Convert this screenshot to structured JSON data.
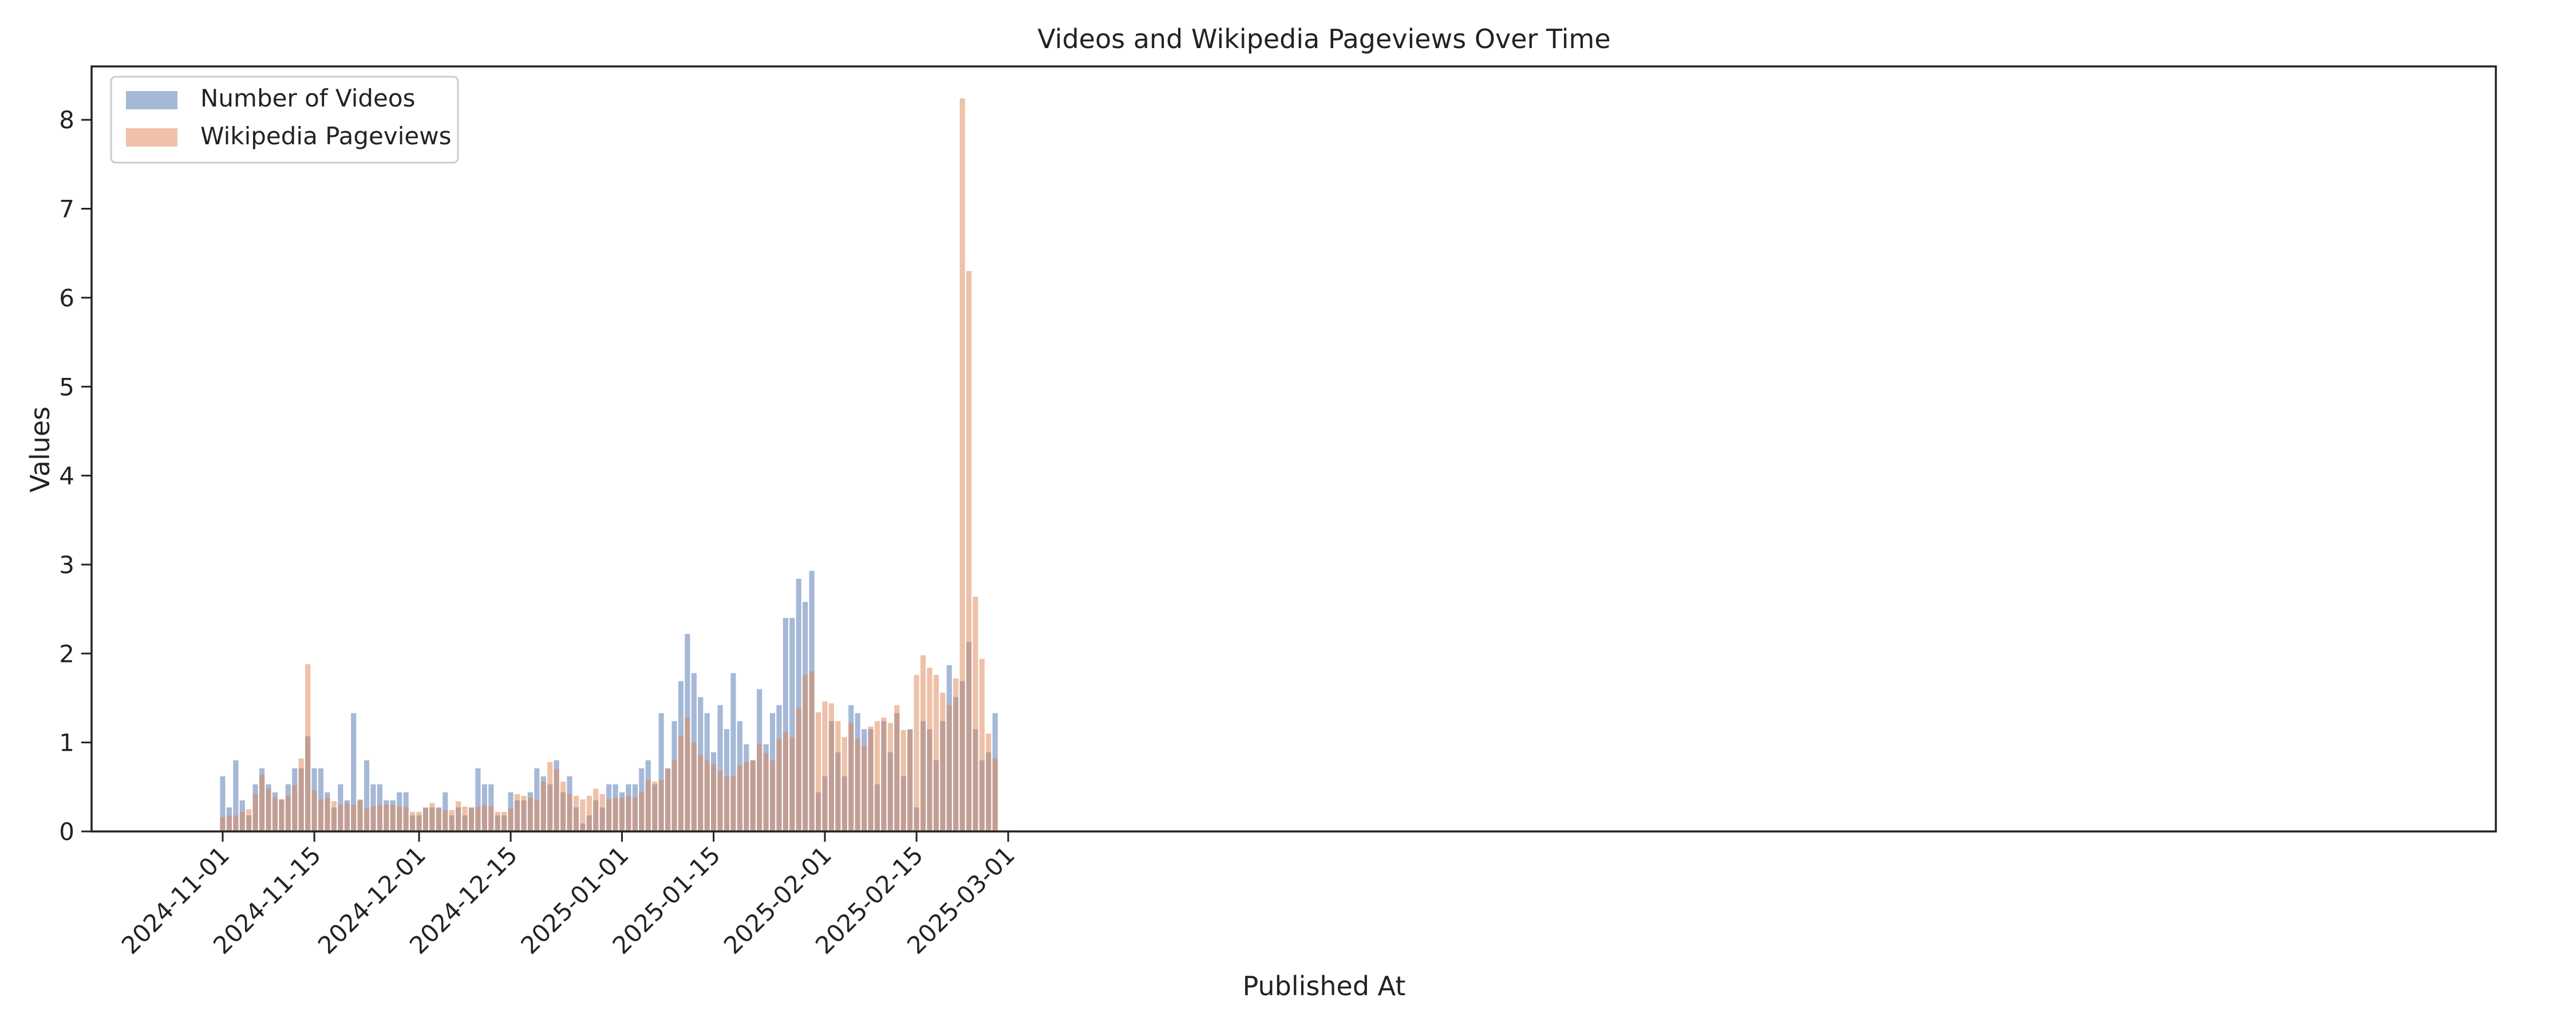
{
  "chart_data": {
    "type": "bar",
    "title": "Videos and Wikipedia Pageviews Over Time",
    "xlabel": "Published At",
    "ylabel": "Values",
    "x_start": "2024-11-01",
    "ylim": [
      0,
      8.6
    ],
    "yticks": [
      0,
      1,
      2,
      3,
      4,
      5,
      6,
      7,
      8
    ],
    "xticks": [
      "2024-11-01",
      "2024-11-15",
      "2024-12-01",
      "2024-12-15",
      "2025-01-01",
      "2025-01-15",
      "2025-02-01",
      "2025-02-15",
      "2025-03-01"
    ],
    "legend_position": "top-left",
    "grid": false,
    "series": [
      {
        "name": "Number of Videos",
        "color": "#4c72b0",
        "values": [
          0.62,
          0.27,
          0.8,
          0.35,
          0.18,
          0.53,
          0.71,
          0.53,
          0.44,
          0.36,
          0.53,
          0.71,
          0.71,
          1.07,
          0.71,
          0.71,
          0.44,
          0.27,
          0.53,
          0.35,
          1.33,
          0.35,
          0.8,
          0.53,
          0.53,
          0.35,
          0.35,
          0.44,
          0.44,
          0.18,
          0.18,
          0.27,
          0.27,
          0.27,
          0.44,
          0.18,
          0.27,
          0.18,
          0.27,
          0.71,
          0.53,
          0.53,
          0.18,
          0.18,
          0.44,
          0.35,
          0.35,
          0.44,
          0.71,
          0.62,
          0.53,
          0.8,
          0.44,
          0.62,
          0.27,
          0.09,
          0.18,
          0.35,
          0.27,
          0.53,
          0.53,
          0.44,
          0.53,
          0.53,
          0.71,
          0.8,
          0.53,
          1.33,
          0.71,
          1.24,
          1.69,
          2.22,
          1.78,
          1.51,
          1.33,
          0.89,
          1.42,
          1.15,
          1.78,
          1.24,
          0.98,
          0.8,
          1.6,
          0.98,
          1.33,
          1.42,
          2.4,
          2.4,
          2.84,
          2.58,
          2.93,
          0.44,
          0.62,
          1.24,
          0.89,
          0.62,
          1.42,
          1.33,
          1.15,
          1.15,
          0.53,
          1.24,
          0.89,
          1.33,
          0.62,
          1.15,
          0.27,
          1.24,
          1.15,
          0.8,
          1.24,
          1.87,
          1.51,
          1.69,
          2.13,
          1.15,
          0.8,
          0.89,
          1.33
        ]
      },
      {
        "name": "Wikipedia Pageviews",
        "color": "#dd8452",
        "values": [
          0.16,
          0.18,
          0.18,
          0.22,
          0.25,
          0.42,
          0.64,
          0.48,
          0.38,
          0.36,
          0.4,
          0.52,
          0.82,
          1.88,
          0.46,
          0.36,
          0.38,
          0.34,
          0.3,
          0.32,
          0.3,
          0.36,
          0.26,
          0.28,
          0.3,
          0.3,
          0.3,
          0.28,
          0.28,
          0.22,
          0.22,
          0.26,
          0.32,
          0.26,
          0.24,
          0.24,
          0.34,
          0.28,
          0.26,
          0.28,
          0.3,
          0.28,
          0.22,
          0.22,
          0.26,
          0.42,
          0.4,
          0.38,
          0.36,
          0.56,
          0.78,
          0.7,
          0.56,
          0.42,
          0.4,
          0.36,
          0.4,
          0.48,
          0.42,
          0.36,
          0.38,
          0.38,
          0.4,
          0.38,
          0.44,
          0.58,
          0.56,
          0.58,
          0.7,
          0.8,
          1.08,
          1.28,
          1.0,
          0.86,
          0.8,
          0.76,
          0.68,
          0.62,
          0.62,
          0.74,
          0.78,
          0.8,
          0.98,
          0.88,
          0.8,
          1.04,
          1.12,
          1.06,
          1.38,
          1.76,
          1.8,
          1.34,
          1.46,
          1.44,
          1.24,
          1.06,
          1.22,
          1.04,
          0.96,
          1.18,
          1.24,
          1.28,
          1.22,
          1.42,
          1.14,
          1.14,
          1.76,
          1.98,
          1.84,
          1.76,
          1.56,
          1.42,
          1.72,
          8.24,
          6.3,
          2.64,
          1.94,
          1.1,
          0.82
        ]
      }
    ]
  }
}
